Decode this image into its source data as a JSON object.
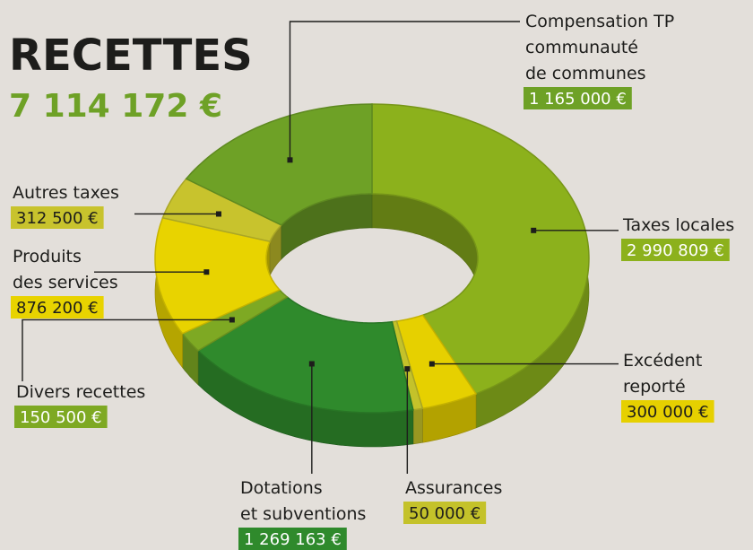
{
  "chart_data": {
    "type": "donut",
    "title": "RECETTES",
    "subtitle": "7 114 172 €",
    "categories": [
      [
        "Taxes locales"
      ],
      [
        "Excédent",
        "reporté"
      ],
      [
        "Assurances"
      ],
      [
        "Dotations",
        "et subventions"
      ],
      [
        "Divers recettes"
      ],
      [
        "Produits",
        "des services"
      ],
      [
        "Autres taxes"
      ],
      [
        "Compensation TP",
        "communauté",
        "de communes"
      ]
    ],
    "values": [
      2990809,
      300000,
      50000,
      1269163,
      150500,
      876200,
      312500,
      1165000
    ],
    "value_labels": [
      "2 990 809 €",
      "300 000 €",
      "50 000 €",
      "1 269 163 €",
      "150 500 €",
      "876 200 €",
      "312 500 €",
      "1 165 000 €"
    ],
    "colors": [
      "#8cb11c",
      "#e6d000",
      "#c4c22a",
      "#2f8a2c",
      "#7ea923",
      "#e8d300",
      "#c8c32d",
      "#6ea126"
    ]
  }
}
